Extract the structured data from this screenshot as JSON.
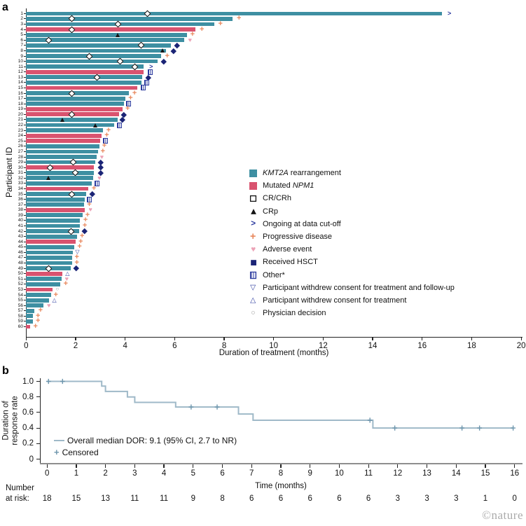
{
  "credit": "©nature",
  "colors": {
    "kmt2a": "#3E8FA2",
    "npm1": "#D9536F",
    "navy": "#2B3A9E",
    "hsct_navy": "#1B2476",
    "orange": "#E8875C",
    "ae_pink": "#ECA2B6",
    "km_line": "#9FB9C8",
    "km_censor": "#6E96AD",
    "axis_gray": "#8E8E8E"
  },
  "panel_a": {
    "label": "a"
  },
  "panel_b": {
    "label": "b",
    "risk_label_lines": [
      "Number",
      "at risk:"
    ]
  },
  "chart_data": [
    {
      "type": "bar",
      "subtype": "swimmer-plot",
      "xlabel": "Duration of treatment (months)",
      "ylabel": "Participant ID",
      "xlim": [
        0,
        20
      ],
      "xticks": [
        0,
        2,
        4,
        6,
        8,
        10,
        12,
        14,
        16,
        18,
        20
      ],
      "legend": [
        {
          "glyph": "kmt2a",
          "pre": "",
          "it": "KMT2A",
          "post": " rearrangement"
        },
        {
          "glyph": "npm1",
          "pre": "Mutated ",
          "it": "NPM1",
          "post": ""
        },
        {
          "glyph": "cr",
          "pre": "CR/CRh",
          "it": "",
          "post": ""
        },
        {
          "glyph": "crp",
          "pre": "CRp",
          "it": "",
          "post": ""
        },
        {
          "glyph": "ongoing",
          "pre": "Ongoing at data cut-off",
          "it": "",
          "post": ""
        },
        {
          "glyph": "pd",
          "pre": "Progressive disease",
          "it": "",
          "post": ""
        },
        {
          "glyph": "ae",
          "pre": "Adverse event",
          "it": "",
          "post": ""
        },
        {
          "glyph": "hsct",
          "pre": "Received HSCT",
          "it": "",
          "post": ""
        },
        {
          "glyph": "other",
          "pre": "Other*",
          "it": "",
          "post": ""
        },
        {
          "glyph": "wc_both",
          "pre": "Participant withdrew consent for treatment and follow-up",
          "it": "",
          "post": ""
        },
        {
          "glyph": "wc_tx",
          "pre": "Participant withdrew consent for treatment",
          "it": "",
          "post": ""
        },
        {
          "glyph": "phys",
          "pre": "Physician decision",
          "it": "",
          "post": ""
        }
      ],
      "participants": [
        {
          "id": 1,
          "group": "kmt2a",
          "duration": 16.8,
          "markers": [
            {
              "t": "cr",
              "x": 4.9
            },
            {
              "t": "ongoing",
              "x": 17.1
            }
          ]
        },
        {
          "id": 2,
          "group": "kmt2a",
          "duration": 8.35,
          "markers": [
            {
              "t": "cr",
              "x": 1.85
            },
            {
              "t": "pd",
              "x": 8.6
            }
          ]
        },
        {
          "id": 3,
          "group": "kmt2a",
          "duration": 7.6,
          "markers": [
            {
              "t": "cr",
              "x": 3.7
            },
            {
              "t": "pd",
              "x": 7.85
            }
          ]
        },
        {
          "id": 4,
          "group": "npm1",
          "duration": 6.85,
          "markers": [
            {
              "t": "cr",
              "x": 1.85
            },
            {
              "t": "pd",
              "x": 7.1
            }
          ]
        },
        {
          "id": 5,
          "group": "kmt2a",
          "duration": 6.5,
          "markers": [
            {
              "t": "crp",
              "x": 3.7
            },
            {
              "t": "pd",
              "x": 6.72
            }
          ]
        },
        {
          "id": 6,
          "group": "kmt2a",
          "duration": 6.4,
          "markers": [
            {
              "t": "cr",
              "x": 0.9
            },
            {
              "t": "ae",
              "x": 6.62
            }
          ]
        },
        {
          "id": 7,
          "group": "kmt2a",
          "duration": 5.85,
          "markers": [
            {
              "t": "cr",
              "x": 4.65
            },
            {
              "t": "hsct",
              "x": 6.1
            }
          ]
        },
        {
          "id": 8,
          "group": "kmt2a",
          "duration": 5.65,
          "markers": [
            {
              "t": "crp",
              "x": 5.5
            },
            {
              "t": "hsct",
              "x": 5.95
            }
          ]
        },
        {
          "id": 9,
          "group": "kmt2a",
          "duration": 5.45,
          "markers": [
            {
              "t": "cr",
              "x": 2.55
            },
            {
              "t": "pd",
              "x": 5.7
            }
          ]
        },
        {
          "id": 10,
          "group": "kmt2a",
          "duration": 5.3,
          "markers": [
            {
              "t": "cr",
              "x": 3.8
            },
            {
              "t": "hsct",
              "x": 5.55
            }
          ]
        },
        {
          "id": 11,
          "group": "kmt2a",
          "duration": 4.75,
          "markers": [
            {
              "t": "cr",
              "x": 4.4
            },
            {
              "t": "ongoing",
              "x": 5.05
            }
          ]
        },
        {
          "id": 12,
          "group": "npm1",
          "duration": 4.75,
          "markers": [
            {
              "t": "other",
              "x": 5.0
            }
          ]
        },
        {
          "id": 13,
          "group": "kmt2a",
          "duration": 4.7,
          "markers": [
            {
              "t": "cr",
              "x": 2.85
            },
            {
              "t": "hsct",
              "x": 4.95
            }
          ]
        },
        {
          "id": 14,
          "group": "kmt2a",
          "duration": 4.65,
          "markers": [
            {
              "t": "other",
              "x": 4.88
            }
          ]
        },
        {
          "id": 15,
          "group": "npm1",
          "duration": 4.5,
          "markers": [
            {
              "t": "other",
              "x": 4.72
            }
          ]
        },
        {
          "id": 16,
          "group": "kmt2a",
          "duration": 4.15,
          "markers": [
            {
              "t": "cr",
              "x": 1.85
            },
            {
              "t": "pd",
              "x": 4.38
            }
          ]
        },
        {
          "id": 17,
          "group": "kmt2a",
          "duration": 4.0,
          "markers": [
            {
              "t": "pd",
              "x": 4.22
            }
          ]
        },
        {
          "id": 18,
          "group": "kmt2a",
          "duration": 3.95,
          "markers": [
            {
              "t": "other",
              "x": 4.14
            }
          ]
        },
        {
          "id": 19,
          "group": "npm1",
          "duration": 3.9,
          "markers": [
            {
              "t": "pd",
              "x": 4.1
            }
          ]
        },
        {
          "id": 20,
          "group": "npm1",
          "duration": 3.75,
          "markers": [
            {
              "t": "cr",
              "x": 1.85
            },
            {
              "t": "hsct",
              "x": 3.95
            }
          ]
        },
        {
          "id": 21,
          "group": "kmt2a",
          "duration": 3.7,
          "markers": [
            {
              "t": "crp",
              "x": 1.45
            },
            {
              "t": "hsct",
              "x": 3.9
            }
          ]
        },
        {
          "id": 22,
          "group": "kmt2a",
          "duration": 3.55,
          "markers": [
            {
              "t": "crp",
              "x": 2.8
            },
            {
              "t": "other",
              "x": 3.78
            }
          ]
        },
        {
          "id": 23,
          "group": "kmt2a",
          "duration": 3.1,
          "markers": [
            {
              "t": "pd",
              "x": 3.33
            }
          ]
        },
        {
          "id": 24,
          "group": "npm1",
          "duration": 3.05,
          "markers": [
            {
              "t": "pd",
              "x": 3.26
            }
          ]
        },
        {
          "id": 25,
          "group": "npm1",
          "duration": 3.0,
          "markers": [
            {
              "t": "other",
              "x": 3.2
            }
          ]
        },
        {
          "id": 26,
          "group": "kmt2a",
          "duration": 2.95,
          "markers": [
            {
              "t": "pd",
              "x": 3.16
            }
          ]
        },
        {
          "id": 27,
          "group": "kmt2a",
          "duration": 2.9,
          "markers": [
            {
              "t": "pd",
              "x": 3.1
            }
          ]
        },
        {
          "id": 28,
          "group": "kmt2a",
          "duration": 2.85,
          "markers": [
            {
              "t": "ae",
              "x": 3.06
            }
          ]
        },
        {
          "id": 29,
          "group": "kmt2a",
          "duration": 2.8,
          "markers": [
            {
              "t": "cr",
              "x": 1.9
            },
            {
              "t": "hsct",
              "x": 3.0
            }
          ]
        },
        {
          "id": 30,
          "group": "npm1",
          "duration": 2.75,
          "markers": [
            {
              "t": "cr",
              "x": 0.98
            },
            {
              "t": "hsct",
              "x": 3.0
            }
          ]
        },
        {
          "id": 31,
          "group": "kmt2a",
          "duration": 2.75,
          "markers": [
            {
              "t": "cr",
              "x": 2.0
            },
            {
              "t": "hsct",
              "x": 3.0
            }
          ]
        },
        {
          "id": 32,
          "group": "kmt2a",
          "duration": 2.72,
          "markers": [
            {
              "t": "crp",
              "x": 0.9
            },
            {
              "t": "ae",
              "x": 2.96
            }
          ]
        },
        {
          "id": 33,
          "group": "kmt2a",
          "duration": 2.65,
          "markers": [
            {
              "t": "other",
              "x": 2.86
            }
          ]
        },
        {
          "id": 34,
          "group": "npm1",
          "duration": 2.52,
          "markers": [
            {
              "t": "pd",
              "x": 2.74
            }
          ]
        },
        {
          "id": 35,
          "group": "kmt2a",
          "duration": 2.42,
          "markers": [
            {
              "t": "cr",
              "x": 1.84
            },
            {
              "t": "hsct",
              "x": 2.66
            }
          ]
        },
        {
          "id": 36,
          "group": "kmt2a",
          "duration": 2.37,
          "markers": [
            {
              "t": "other",
              "x": 2.56
            }
          ]
        },
        {
          "id": 37,
          "group": "kmt2a",
          "duration": 2.35,
          "markers": [
            {
              "t": "pd",
              "x": 2.55
            }
          ]
        },
        {
          "id": 38,
          "group": "npm1",
          "duration": 2.37,
          "markers": [
            {
              "t": "ae",
              "x": 2.6
            }
          ]
        },
        {
          "id": 39,
          "group": "kmt2a",
          "duration": 2.27,
          "markers": [
            {
              "t": "pd",
              "x": 2.48
            }
          ]
        },
        {
          "id": 40,
          "group": "kmt2a",
          "duration": 2.18,
          "markers": [
            {
              "t": "pd",
              "x": 2.4
            }
          ]
        },
        {
          "id": 41,
          "group": "kmt2a",
          "duration": 2.16,
          "markers": [
            {
              "t": "pd",
              "x": 2.37
            }
          ]
        },
        {
          "id": 42,
          "group": "kmt2a",
          "duration": 2.15,
          "markers": [
            {
              "t": "cr",
              "x": 1.83
            },
            {
              "t": "hsct",
              "x": 2.36
            }
          ]
        },
        {
          "id": 43,
          "group": "kmt2a",
          "duration": 2.07,
          "markers": [
            {
              "t": "pd",
              "x": 2.26
            }
          ]
        },
        {
          "id": 44,
          "group": "npm1",
          "duration": 2.0,
          "markers": [
            {
              "t": "pd",
              "x": 2.21
            }
          ]
        },
        {
          "id": 45,
          "group": "kmt2a",
          "duration": 1.95,
          "markers": [
            {
              "t": "pd",
              "x": 2.16
            }
          ]
        },
        {
          "id": 46,
          "group": "kmt2a",
          "duration": 1.88,
          "markers": [
            {
              "t": "wc_both",
              "x": 2.07
            }
          ]
        },
        {
          "id": 47,
          "group": "kmt2a",
          "duration": 1.85,
          "markers": [
            {
              "t": "pd",
              "x": 2.05
            }
          ]
        },
        {
          "id": 48,
          "group": "kmt2a",
          "duration": 1.85,
          "markers": [
            {
              "t": "pd",
              "x": 2.05
            }
          ]
        },
        {
          "id": 49,
          "group": "kmt2a",
          "duration": 1.81,
          "markers": [
            {
              "t": "cr",
              "x": 0.9
            },
            {
              "t": "hsct",
              "x": 2.02
            }
          ]
        },
        {
          "id": 50,
          "group": "npm1",
          "duration": 1.45,
          "markers": [
            {
              "t": "wc_tx",
              "x": 1.67
            }
          ]
        },
        {
          "id": 51,
          "group": "kmt2a",
          "duration": 1.43,
          "markers": [
            {
              "t": "ae",
              "x": 1.64
            }
          ]
        },
        {
          "id": 52,
          "group": "kmt2a",
          "duration": 1.39,
          "markers": [
            {
              "t": "pd",
              "x": 1.6
            }
          ]
        },
        {
          "id": 53,
          "group": "npm1",
          "duration": 1.07,
          "markers": [
            {
              "t": "phys",
              "x": 1.26
            }
          ]
        },
        {
          "id": 54,
          "group": "kmt2a",
          "duration": 1.01,
          "markers": [
            {
              "t": "pd",
              "x": 1.2
            }
          ]
        },
        {
          "id": 55,
          "group": "kmt2a",
          "duration": 0.93,
          "markers": [
            {
              "t": "wc_tx",
              "x": 1.14
            }
          ]
        },
        {
          "id": 56,
          "group": "kmt2a",
          "duration": 0.7,
          "markers": [
            {
              "t": "ae",
              "x": 0.92
            }
          ]
        },
        {
          "id": 57,
          "group": "kmt2a",
          "duration": 0.32,
          "markers": [
            {
              "t": "pd",
              "x": 0.58
            }
          ]
        },
        {
          "id": 58,
          "group": "kmt2a",
          "duration": 0.28,
          "markers": [
            {
              "t": "pd",
              "x": 0.48
            }
          ]
        },
        {
          "id": 59,
          "group": "kmt2a",
          "duration": 0.28,
          "markers": [
            {
              "t": "pd",
              "x": 0.48
            }
          ]
        },
        {
          "id": 60,
          "group": "npm1",
          "duration": 0.16,
          "markers": [
            {
              "t": "pd",
              "x": 0.38
            }
          ]
        }
      ]
    },
    {
      "type": "line",
      "subtype": "kaplan-meier",
      "xlabel": "Time (months)",
      "ylabel": "Duration of response rate",
      "ylabel_lines": [
        "Duration of",
        "response rate"
      ],
      "xlim": [
        0,
        16
      ],
      "ylim": [
        0,
        1.0
      ],
      "xticks": [
        0,
        1,
        2,
        3,
        4,
        5,
        6,
        7,
        8,
        9,
        10,
        11,
        12,
        13,
        14,
        15,
        16
      ],
      "yticks": [
        "1.0",
        "0.8",
        "0.6",
        "0.4",
        "0.2",
        "0"
      ],
      "ytick_values": [
        1.0,
        0.8,
        0.6,
        0.4,
        0.2,
        0
      ],
      "legend": [
        "Overall median DOR: 9.1 (95% CI,  2.7 to NR)",
        "Censored"
      ],
      "steps": [
        [
          0,
          1.0
        ],
        [
          1.87,
          1.0
        ],
        [
          1.87,
          0.94
        ],
        [
          2.0,
          0.94
        ],
        [
          2.0,
          0.87
        ],
        [
          2.75,
          0.87
        ],
        [
          2.75,
          0.8
        ],
        [
          3.0,
          0.8
        ],
        [
          3.0,
          0.73
        ],
        [
          4.4,
          0.73
        ],
        [
          4.4,
          0.67
        ],
        [
          6.55,
          0.67
        ],
        [
          6.55,
          0.58
        ],
        [
          7.05,
          0.58
        ],
        [
          7.05,
          0.5
        ],
        [
          11.15,
          0.5
        ],
        [
          11.15,
          0.4
        ],
        [
          15.95,
          0.4
        ]
      ],
      "censored": [
        [
          0.05,
          1.0
        ],
        [
          0.53,
          1.0
        ],
        [
          4.93,
          0.67
        ],
        [
          5.82,
          0.67
        ],
        [
          11.05,
          0.5
        ],
        [
          11.9,
          0.4
        ],
        [
          14.2,
          0.4
        ],
        [
          14.8,
          0.4
        ],
        [
          15.95,
          0.4
        ]
      ],
      "number_at_risk": {
        "times": [
          0,
          1,
          2,
          3,
          4,
          5,
          6,
          7,
          8,
          9,
          10,
          11,
          12,
          13,
          14,
          15,
          16
        ],
        "values": [
          "18",
          "15",
          "13",
          "11",
          "11",
          "9",
          "8",
          "6",
          "6",
          "6",
          "6",
          "6",
          "3",
          "3",
          "3",
          "1",
          "0"
        ]
      }
    }
  ]
}
